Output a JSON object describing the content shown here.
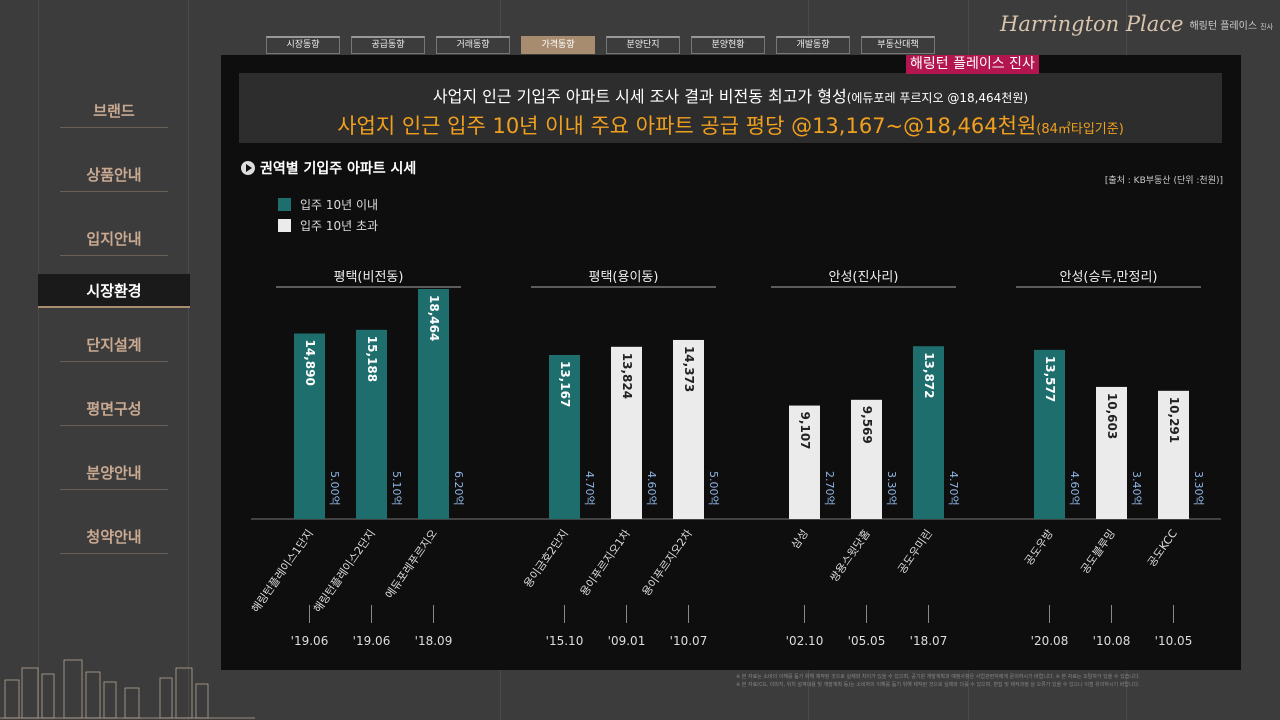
{
  "brand": {
    "script": "Harrington Place",
    "ko": "해링턴 플레이스",
    "ko_small": "진사"
  },
  "panel_tag": "해링턴 플레이스 진사",
  "sidebar": {
    "items": [
      {
        "label": "브랜드",
        "active": false
      },
      {
        "label": "상품안내",
        "active": false
      },
      {
        "label": "입지안내",
        "active": false
      },
      {
        "label": "시장환경",
        "active": true
      },
      {
        "label": "단지설계",
        "active": false
      },
      {
        "label": "평면구성",
        "active": false
      },
      {
        "label": "분양안내",
        "active": false
      },
      {
        "label": "청약안내",
        "active": false
      }
    ]
  },
  "tabs": [
    {
      "label": "시장동향",
      "active": false
    },
    {
      "label": "공급동향",
      "active": false
    },
    {
      "label": "거래동향",
      "active": false
    },
    {
      "label": "가격동향",
      "active": true
    },
    {
      "label": "분양단지",
      "active": false
    },
    {
      "label": "분양현황",
      "active": false
    },
    {
      "label": "개발동향",
      "active": false
    },
    {
      "label": "부동산대책",
      "active": false
    }
  ],
  "headline": {
    "line1": "사업지 인근 기입주 아파트 시세 조사 결과 비전동 최고가 형성",
    "line1_small": "(에듀포레 푸르지오 @18,464천원)",
    "line2": "사업지 인근 입주 10년 이내 주요 아파트 공급 평당 @13,167~@18,464천원",
    "line2_small": "(84㎡타입기준)"
  },
  "section_title": "권역별 기입주 아파트 시세",
  "source": "[출처 : KB부동산  (단위 :천원)]",
  "colors": {
    "teal": "#1f6e6e",
    "white": "#ebebeb",
    "accent": "#f0a01e",
    "tag": "#b3154e"
  },
  "chart_data": {
    "type": "bar",
    "unit": "천원",
    "legend": [
      {
        "name": "입주 10년 이내",
        "color": "#1f6e6e"
      },
      {
        "name": "입주 10년 초과",
        "color": "#ebebeb"
      }
    ],
    "groups": [
      {
        "name": "평택(비전동)",
        "items": [
          {
            "name": "해링턴플레이스1단지",
            "value": 14890,
            "year": "'19.06",
            "rate": "5.00억",
            "within10": true
          },
          {
            "name": "해링턴플레이스2단지",
            "value": 15188,
            "year": "'19.06",
            "rate": "5.10억",
            "within10": true
          },
          {
            "name": "에듀포레푸르지오",
            "value": 18464,
            "year": "'18.09",
            "rate": "6.20억",
            "within10": true
          }
        ]
      },
      {
        "name": "평택(용이동)",
        "items": [
          {
            "name": "용이금호2단지",
            "value": 13167,
            "year": "'15.10",
            "rate": "4.70억",
            "within10": true
          },
          {
            "name": "용이푸르지오1차",
            "value": 13824,
            "year": "'09.01",
            "rate": "4.60억",
            "within10": false
          },
          {
            "name": "용이푸르지오2차",
            "value": 14373,
            "year": "'10.07",
            "rate": "5.00억",
            "within10": false
          }
        ]
      },
      {
        "name": "안성(진사리)",
        "items": [
          {
            "name": "삼성",
            "value": 9107,
            "year": "'02.10",
            "rate": "2.70억",
            "within10": false
          },
          {
            "name": "쌍용스윗닷홈",
            "value": 9569,
            "year": "'05.05",
            "rate": "3.30억",
            "within10": false
          },
          {
            "name": "공도우미린",
            "value": 13872,
            "year": "'18.07",
            "rate": "4.70억",
            "within10": true
          }
        ]
      },
      {
        "name": "안성(승두,만정리)",
        "items": [
          {
            "name": "공도우방",
            "value": 13577,
            "year": "'20.08",
            "rate": "4.60억",
            "within10": true
          },
          {
            "name": "공도블루밍",
            "value": 10603,
            "year": "'10.08",
            "rate": "3.40억",
            "within10": false
          },
          {
            "name": "공도KCC",
            "value": 10291,
            "year": "'10.05",
            "rate": "3.30억",
            "within10": false
          }
        ]
      }
    ]
  },
  "disclaimer": [
    "※ 본 자료는 소비의 이해를 돕기 위해 제작된 것으로 실제와 차이가 있을 수 있으며, 공기원 개발계획과 예정사항은 사업관련자에게 문의하시기 바랍니다.   ※ 본 자료는 오탈자가 있을 수 있습니다.",
    "※ 본 자료(CG, 이미지, 위치 설계내용 및 개발계획 등)는 소비자의 이해를 돕기 위해 제작된 것으로 실제와 다를 수 있으며, 편집 및 제작과정 상 오류가 있을 수 있으니 이점 유의하시기 바랍니다."
  ]
}
